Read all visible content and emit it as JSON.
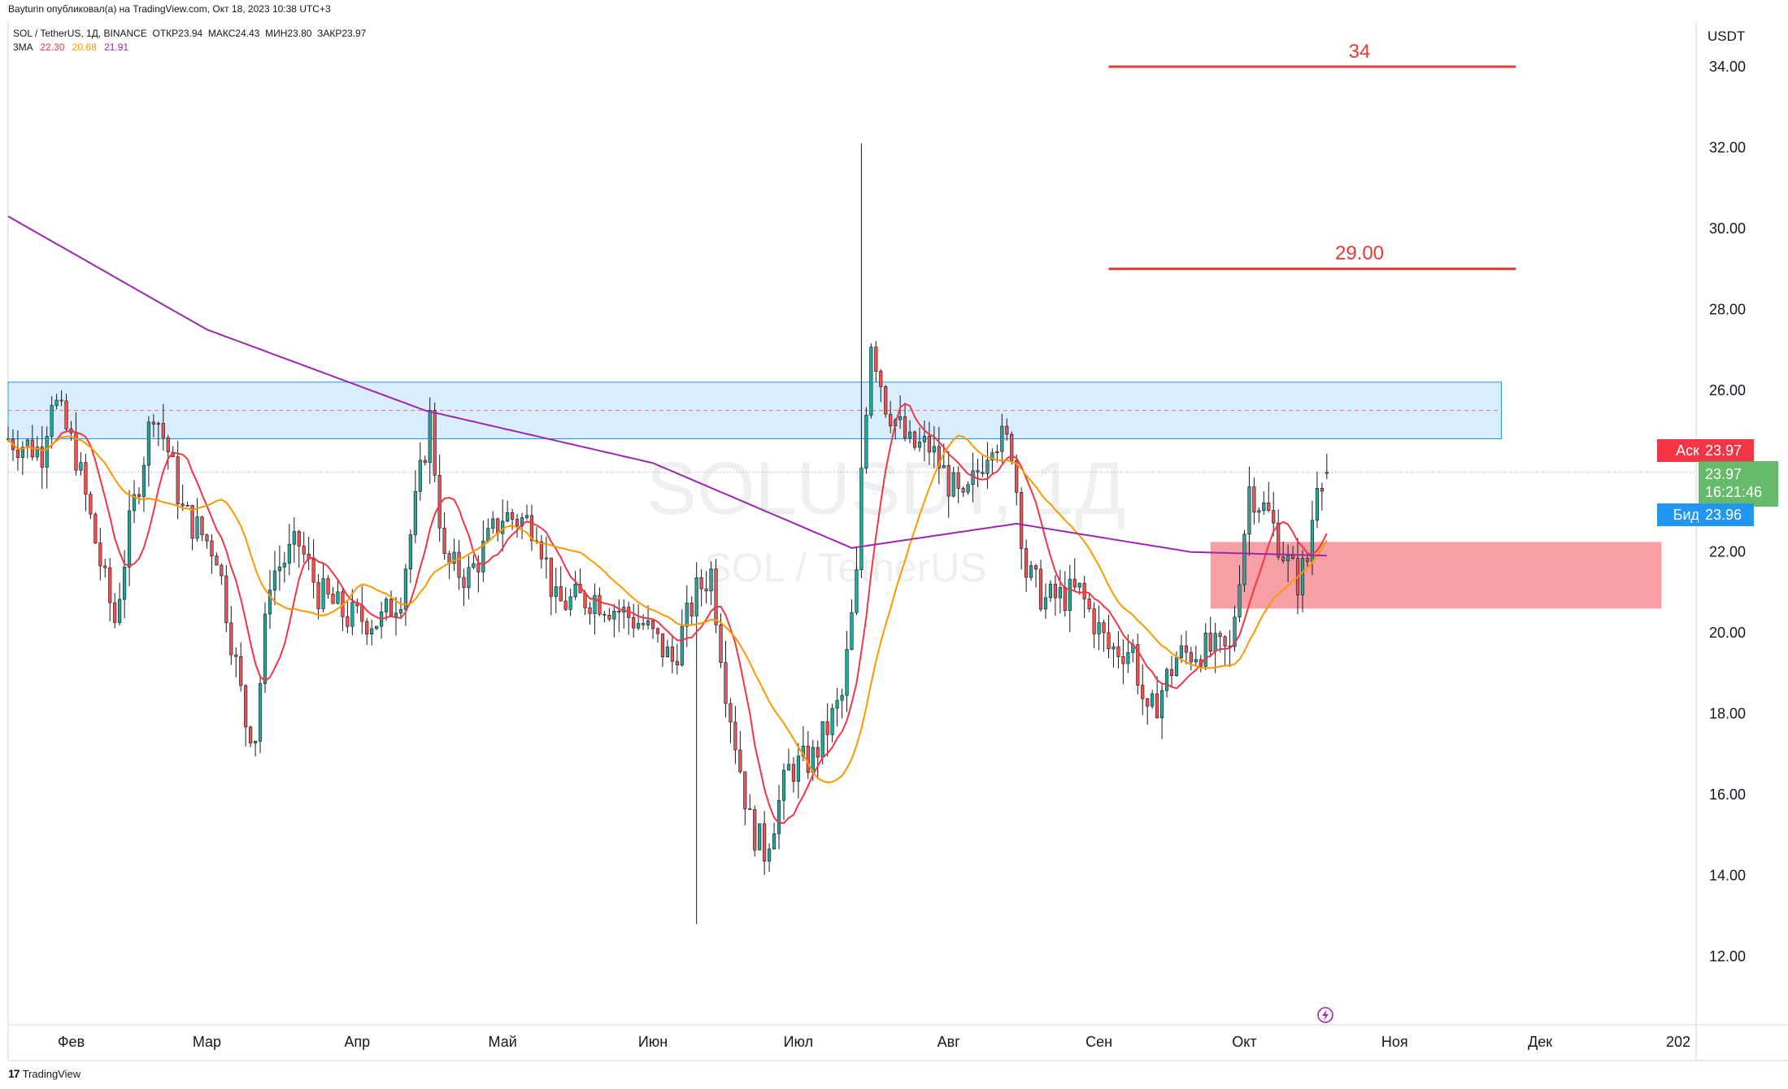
{
  "header": {
    "published_by": "Bayturin опубликовал(а) на TradingView.com, Окт 18, 2023 10:38 UTC+3",
    "symbol_line": "SOL / TetherUS, 1Д, BINANCE  ОТКР23.94  МАКС24.43  МИН23.80  ЗАКР23.97",
    "ma_label": "3MA",
    "ma_values": [
      "22.30",
      "20.68",
      "21.91"
    ]
  },
  "watermark": {
    "symbol": "SOLUSDT, 1Д",
    "name": "SOL / TetherUS"
  },
  "price_axis": {
    "currency": "USDT",
    "ticks": [
      "34.00",
      "32.00",
      "30.00",
      "28.00",
      "26.00",
      "22.00",
      "20.00",
      "18.00",
      "16.00",
      "14.00",
      "12.00"
    ]
  },
  "time_axis": {
    "ticks": [
      "Фев",
      "Мар",
      "Апр",
      "Май",
      "Июн",
      "Июл",
      "Авг",
      "Сен",
      "Окт",
      "Ноя",
      "Дек",
      "202"
    ]
  },
  "quote": {
    "ask_label": "Аск",
    "ask_value": "23.97",
    "last_price": "23.97",
    "countdown": "16:21:46",
    "bid_label": "Бид",
    "bid_value": "23.96"
  },
  "annotations": {
    "target_high_label": "34",
    "target_mid_label": "29.00"
  },
  "footer": {
    "brand": "TradingView"
  },
  "colors": {
    "up": "#26a69a",
    "down": "#ef5350",
    "ma_fast": "#f23645",
    "ma_mid": "#ff9800",
    "ma_slow": "#9c27b0",
    "resistance_zone": "#bbdefb",
    "support_zone": "#f48f96",
    "target_line": "#e53935",
    "last_price_bg": "#4caf50",
    "ask_bg": "#f23645",
    "bid_bg": "#2196f3"
  },
  "chart_data": {
    "type": "candlestick",
    "y_scale": {
      "min": 11.0,
      "max": 35.0
    },
    "x_range": [
      "2023-01-19",
      "2024-01-01"
    ],
    "horizontal_levels": [
      {
        "label": "34",
        "price": 34.0,
        "from": "2023-09-03",
        "to": "2023-11-26"
      },
      {
        "label": "29.00",
        "price": 29.0,
        "from": "2023-09-03",
        "to": "2023-11-26"
      }
    ],
    "zones": [
      {
        "name": "resistance",
        "low": 24.8,
        "high": 26.2,
        "mid": 25.5,
        "from": "2023-01-19",
        "to": "2023-11-23"
      },
      {
        "name": "support",
        "low": 20.6,
        "high": 22.25,
        "from": "2023-09-24",
        "to": "2023-12-26"
      }
    ],
    "ohlc_anchors": [
      [
        "2023-01-19",
        24.8
      ],
      [
        "2023-01-26",
        24.5
      ],
      [
        "2023-01-28",
        25.9
      ],
      [
        "2023-02-02",
        24.4
      ],
      [
        "2023-02-08",
        21.2
      ],
      [
        "2023-02-10",
        20.3
      ],
      [
        "2023-02-13",
        22.6
      ],
      [
        "2023-02-18",
        25.6
      ],
      [
        "2023-02-21",
        24.5
      ],
      [
        "2023-02-24",
        23.0
      ],
      [
        "2023-03-03",
        22.0
      ],
      [
        "2023-03-09",
        17.8
      ],
      [
        "2023-03-11",
        17.5
      ],
      [
        "2023-03-14",
        21.4
      ],
      [
        "2023-03-20",
        22.2
      ],
      [
        "2023-03-24",
        21.0
      ],
      [
        "2023-03-30",
        20.4
      ],
      [
        "2023-04-06",
        20.3
      ],
      [
        "2023-04-10",
        21.0
      ],
      [
        "2023-04-16",
        25.3
      ],
      [
        "2023-04-19",
        21.7
      ],
      [
        "2023-04-24",
        21.4
      ],
      [
        "2023-05-01",
        22.9
      ],
      [
        "2023-05-08",
        22.7
      ],
      [
        "2023-05-12",
        20.7
      ],
      [
        "2023-05-20",
        20.9
      ],
      [
        "2023-05-30",
        20.2
      ],
      [
        "2023-06-05",
        19.3
      ],
      [
        "2023-06-10",
        21.0
      ],
      [
        "2023-06-13",
        21.5
      ],
      [
        "2023-06-16",
        18.7
      ],
      [
        "2023-06-21",
        15.3
      ],
      [
        "2023-06-24",
        14.6
      ],
      [
        "2023-06-29",
        16.6
      ],
      [
        "2023-07-04",
        16.9
      ],
      [
        "2023-07-10",
        18.4
      ],
      [
        "2023-07-13",
        21.3
      ],
      [
        "2023-07-14",
        24.1
      ],
      [
        "2023-07-16",
        27.3
      ],
      [
        "2023-07-19",
        25.7
      ],
      [
        "2023-07-24",
        24.6
      ],
      [
        "2023-07-28",
        24.6
      ],
      [
        "2023-08-04",
        23.1
      ],
      [
        "2023-08-10",
        24.9
      ],
      [
        "2023-08-14",
        24.6
      ],
      [
        "2023-08-17",
        21.5
      ],
      [
        "2023-08-21",
        20.8
      ],
      [
        "2023-08-28",
        21.0
      ],
      [
        "2023-09-03",
        19.6
      ],
      [
        "2023-09-08",
        19.6
      ],
      [
        "2023-09-11",
        17.8
      ],
      [
        "2023-09-17",
        19.4
      ],
      [
        "2023-09-22",
        19.6
      ],
      [
        "2023-09-28",
        19.5
      ],
      [
        "2023-10-02",
        23.6
      ],
      [
        "2023-10-06",
        22.9
      ],
      [
        "2023-10-10",
        21.7
      ],
      [
        "2023-10-12",
        21.3
      ],
      [
        "2023-10-14",
        21.8
      ],
      [
        "2023-10-16",
        23.9
      ],
      [
        "2023-10-18",
        23.97
      ]
    ],
    "last_candle": {
      "date": "2023-10-18",
      "open": 23.94,
      "high": 24.43,
      "low": 23.8,
      "close": 23.97
    },
    "wick_extremes": [
      {
        "date": "2023-07-14",
        "high": 32.1
      },
      {
        "date": "2023-06-10",
        "low": 12.8
      }
    ],
    "moving_averages": [
      {
        "name": "22.30",
        "color": "#f23645",
        "last": 22.3
      },
      {
        "name": "20.68",
        "color": "#ff9800",
        "last": 20.68
      },
      {
        "name": "21.91",
        "color": "#9c27b0",
        "last": 21.91,
        "anchors": [
          [
            "2023-01-19",
            30.3
          ],
          [
            "2023-03-01",
            27.5
          ],
          [
            "2023-04-15",
            25.5
          ],
          [
            "2023-06-01",
            24.2
          ],
          [
            "2023-07-12",
            22.1
          ],
          [
            "2023-08-15",
            22.7
          ],
          [
            "2023-09-20",
            22.0
          ],
          [
            "2023-10-18",
            21.91
          ]
        ]
      }
    ]
  }
}
